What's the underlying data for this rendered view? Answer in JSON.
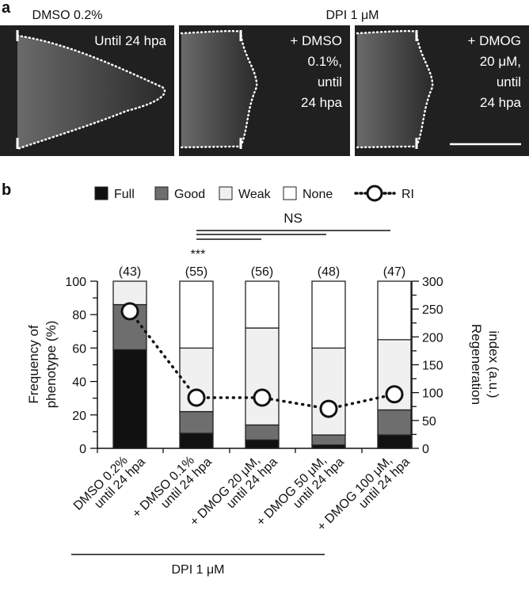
{
  "panel_a": {
    "label": "a",
    "group_left": "DMSO 0.2%",
    "group_right": "DPI 1 μM",
    "images": [
      {
        "caption": [
          "Until 24 hpa"
        ]
      },
      {
        "caption": [
          "+ DMSO",
          "0.1%,",
          "until",
          "24 hpa"
        ]
      },
      {
        "caption": [
          "+ DMOG",
          "20 μM,",
          "until",
          "24 hpa"
        ]
      }
    ]
  },
  "panel_b_label": "b",
  "chart_data": {
    "type": "bar",
    "stacked": true,
    "categories": [
      [
        "DMSO 0.2%",
        "until 24 hpa"
      ],
      [
        "+ DMSO 0.1%",
        "until 24 hpa"
      ],
      [
        "+ DMOG 20 μM,",
        "until 24 hpa"
      ],
      [
        "+ DMOG 50 μM,",
        "until 24 hpa"
      ],
      [
        "+ DMOG 100 μM,",
        "until 24 hpa"
      ]
    ],
    "n_labels": [
      "(43)",
      "(55)",
      "(56)",
      "(48)",
      "(47)"
    ],
    "series": [
      {
        "name": "Full",
        "color": "#111111",
        "values": [
          59,
          9,
          5,
          2,
          8
        ]
      },
      {
        "name": "Good",
        "color": "#6e6e6e",
        "values": [
          27,
          13,
          9,
          6,
          15
        ]
      },
      {
        "name": "Weak",
        "color": "#f0f0f0",
        "values": [
          14,
          38,
          58,
          52,
          42
        ]
      },
      {
        "name": "None",
        "color": "#ffffff",
        "values": [
          0,
          40,
          28,
          40,
          35
        ]
      }
    ],
    "line_series": {
      "name": "RI",
      "axis": "right",
      "values": [
        246,
        91,
        91,
        71,
        97
      ]
    },
    "ylabel": [
      "Frequency of",
      "phenotype (%)"
    ],
    "y2label": [
      "Regeneration",
      "index (a.u.)"
    ],
    "ylim": [
      0,
      100
    ],
    "y2lim": [
      0,
      300
    ],
    "yticks": [
      0,
      20,
      40,
      60,
      80,
      100
    ],
    "y2ticks": [
      0,
      50,
      100,
      150,
      200,
      250,
      300
    ],
    "significance": {
      "stars": "***",
      "ns": "NS"
    },
    "group_label": "DPI 1 μM",
    "legend_position": "top"
  }
}
